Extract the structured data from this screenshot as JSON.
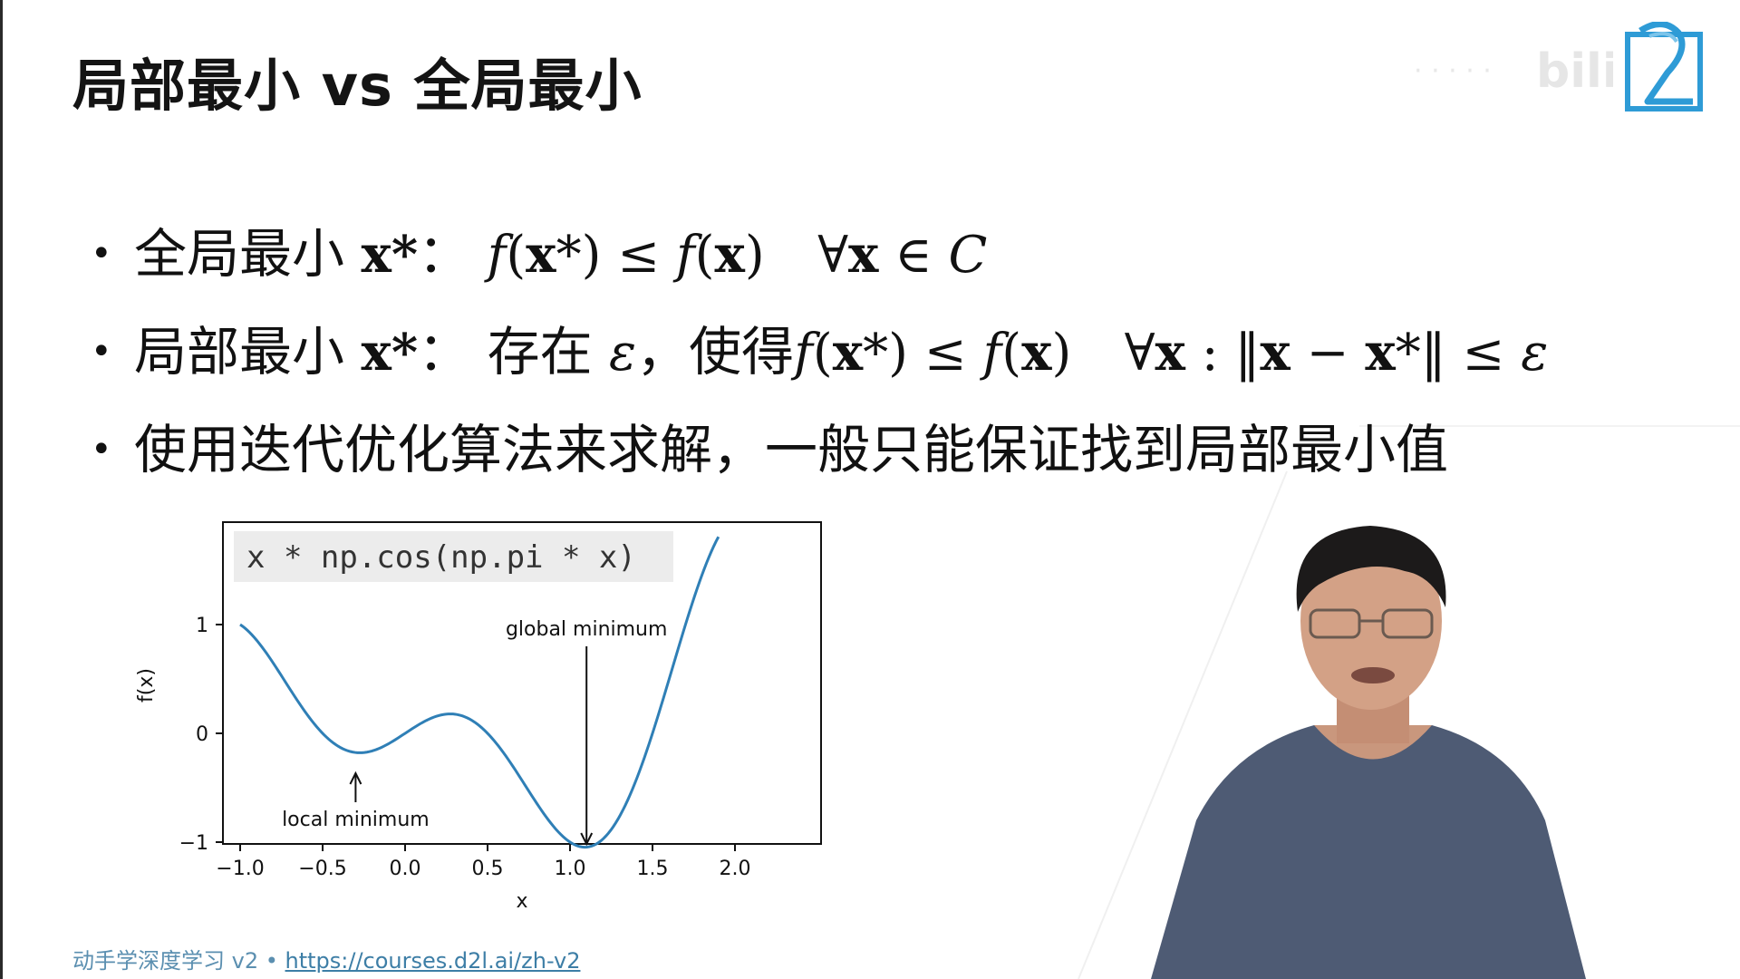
{
  "slide": {
    "title": "局部最小 vs 全局最小",
    "bullets": [
      {
        "label": "全局最小",
        "x_star": "x*",
        "colon": "：",
        "expr_left": "f(x*) ≤ f(x)",
        "quantifier": "∀x ∈ C"
      },
      {
        "label": "局部最小",
        "x_star": "x*",
        "colon": "：",
        "exists": "存在",
        "eps": "ε",
        "comma_then": "，使得",
        "expr_left": "f(x*) ≤ f(x)",
        "quantifier": "∀x : ‖x − x*‖ ≤ ε"
      },
      {
        "text": "使用迭代优化算法来求解，一般只能保证找到局部最小值"
      }
    ]
  },
  "chart_data": {
    "type": "line",
    "title": "x * np.cos(np.pi * x)",
    "xlabel": "x",
    "ylabel": "f(x)",
    "xlim": [
      -1.0,
      2.0
    ],
    "ylim": [
      -1.12,
      2.0
    ],
    "xticks": [
      -1.0,
      -0.5,
      0.0,
      0.5,
      1.0,
      1.5,
      2.0
    ],
    "xtick_labels": [
      "−1.0",
      "−0.5",
      "0.0",
      "0.5",
      "1.0",
      "1.5",
      "2.0"
    ],
    "yticks": [
      1,
      0,
      -1
    ],
    "ytick_labels": [
      "1",
      "0",
      "−1"
    ],
    "series": [
      {
        "name": "f(x)",
        "color": "#2f7fb6",
        "x_range": [
          -1.0,
          1.9
        ],
        "formula": "x*cos(pi*x)"
      }
    ],
    "annotations": [
      {
        "text": "global minimum",
        "point": [
          1.1,
          -1.05
        ],
        "text_at": [
          1.1,
          0.9
        ]
      },
      {
        "text": "local minimum",
        "point": [
          -0.3,
          -0.3
        ],
        "text_at": [
          -0.3,
          -0.85
        ]
      }
    ]
  },
  "footer": {
    "prefix": "动手学深度学习 v2 • ",
    "link_text": "https://courses.d2l.ai/zh-v2"
  },
  "logo": {
    "icon": "d2l-logo-icon",
    "color": "#2e9bd6"
  }
}
